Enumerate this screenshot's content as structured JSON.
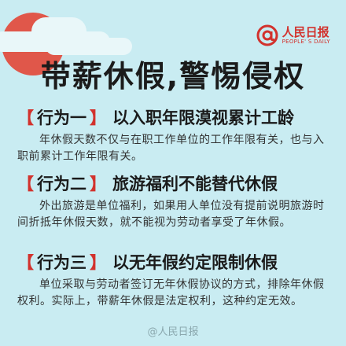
{
  "logo": {
    "name": "人民日报",
    "english": "PEOPLE' S DAILY"
  },
  "title": "带薪休假,警惕侵权",
  "sections": [
    {
      "tag": "行为一",
      "heading": "以入职年限漠视累计工龄",
      "body": "年休假天数不仅与在职工作单位的工作年限有关，也与入职前累计工作年限有关。"
    },
    {
      "tag": "行为二",
      "heading": "旅游福利不能替代休假",
      "body": "外出旅游是单位福利，如果用人单位没有提前说明旅游时间折抵年休假天数，就不能视为劳动者享受了年休假。"
    },
    {
      "tag": "行为三",
      "heading": "以无年假约定限制休假",
      "body": "单位采取与劳动者签订无年休假协议的方式，排除年休假权利。实际上，带薪年休假是法定权利，这种约定无效。"
    }
  ],
  "watermark": "@人民日报",
  "colors": {
    "background": "#c9ecf2",
    "accent": "#d2322d",
    "sun": "#e0574a"
  }
}
